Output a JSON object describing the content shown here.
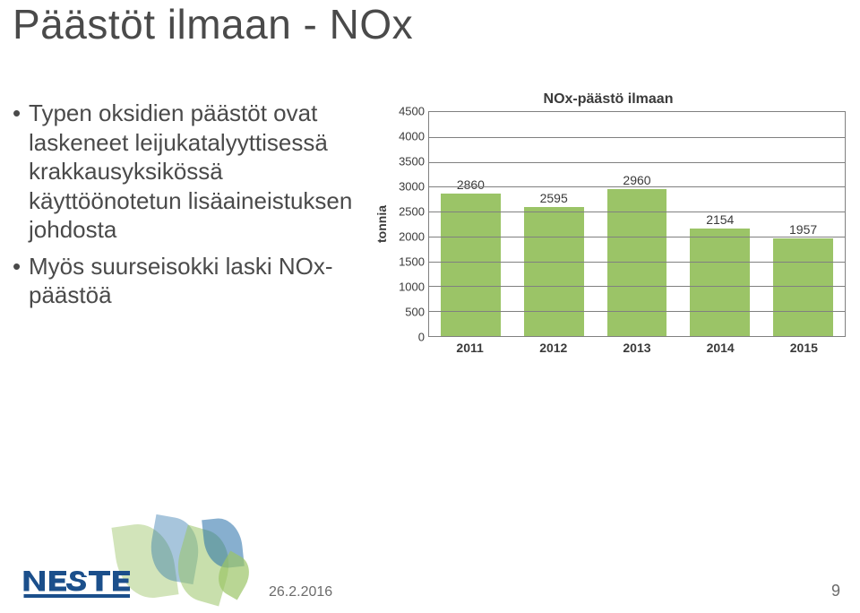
{
  "title": "Päästöt ilmaan - NOx",
  "bullets": [
    "Typen oksidien päästöt ovat laskeneet leijukatalyyttisessä krakkausyksikössä käyttöönotetun lisäaineistuksen johdosta",
    "Myös suurseisokki laski NOx-päästöä"
  ],
  "chart": {
    "type": "bar",
    "title": "NOx-päästö ilmaan",
    "ylabel": "tonnia",
    "ylim": [
      0,
      4500
    ],
    "ytick_step": 500,
    "categories": [
      "2011",
      "2012",
      "2013",
      "2014",
      "2015"
    ],
    "values": [
      2860,
      2595,
      2960,
      2154,
      1957
    ],
    "bar_color": "#9bc467",
    "grid_color": "#808080",
    "background_color": "#ffffff",
    "title_fontsize": 16,
    "label_fontsize": 14,
    "tick_fontsize": 13,
    "bar_width": 0.8
  },
  "footer": {
    "date": "26.2.2016",
    "page": "9",
    "brand": "NESTE",
    "brand_colors": {
      "word": "#1b4f8b",
      "underline": "#1b4f8b"
    }
  }
}
